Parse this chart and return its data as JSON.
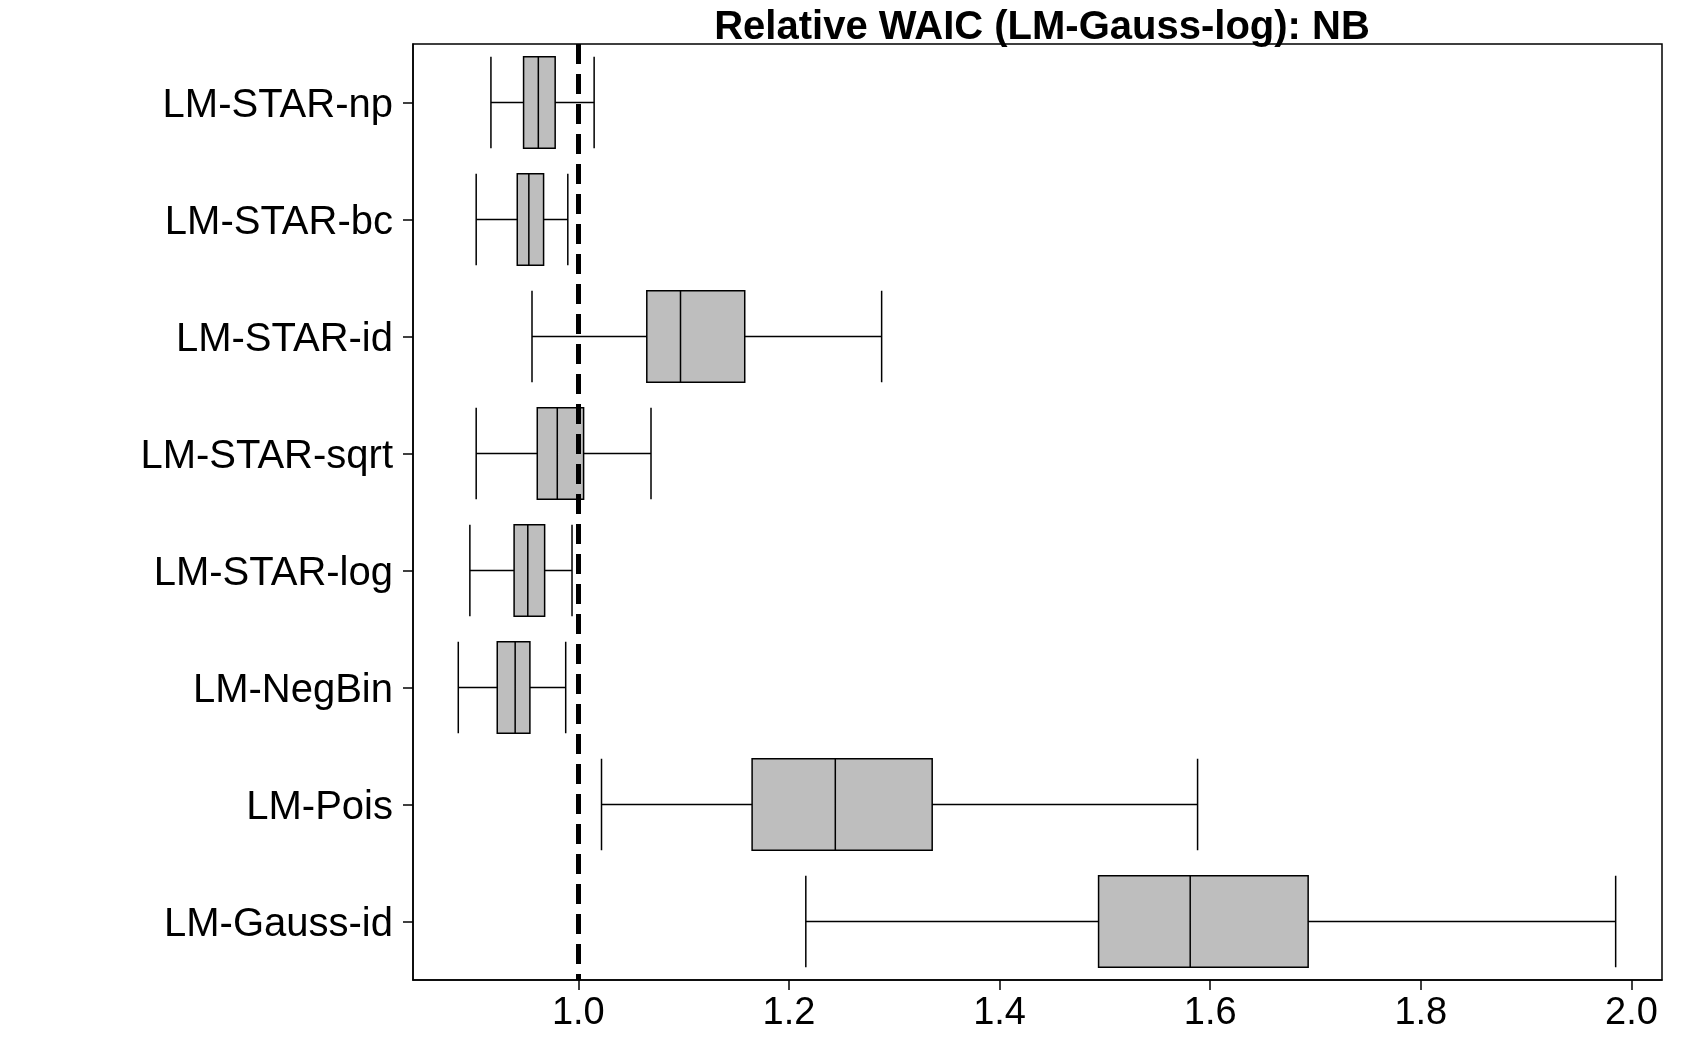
{
  "chart_data": {
    "type": "box",
    "orientation": "horizontal",
    "title": "Relative WAIC (LM-Gauss-log): NB",
    "categories": [
      "LM-STAR-np",
      "LM-STAR-bc",
      "LM-STAR-id",
      "LM-STAR-sqrt",
      "LM-STAR-log",
      "LM-NegBin",
      "LM-Pois",
      "LM-Gauss-id"
    ],
    "boxes": [
      {
        "low": 0.917,
        "q1": 0.948,
        "median": 0.962,
        "q3": 0.978,
        "high": 1.015
      },
      {
        "low": 0.903,
        "q1": 0.942,
        "median": 0.953,
        "q3": 0.967,
        "high": 0.99
      },
      {
        "low": 0.956,
        "q1": 1.065,
        "median": 1.097,
        "q3": 1.158,
        "high": 1.288
      },
      {
        "low": 0.903,
        "q1": 0.961,
        "median": 0.98,
        "q3": 1.005,
        "high": 1.069
      },
      {
        "low": 0.897,
        "q1": 0.939,
        "median": 0.952,
        "q3": 0.968,
        "high": 0.994
      },
      {
        "low": 0.886,
        "q1": 0.923,
        "median": 0.94,
        "q3": 0.954,
        "high": 0.988
      },
      {
        "low": 1.022,
        "q1": 1.165,
        "median": 1.244,
        "q3": 1.336,
        "high": 1.588
      },
      {
        "low": 1.216,
        "q1": 1.494,
        "median": 1.581,
        "q3": 1.693,
        "high": 1.985
      }
    ],
    "color": "#bebebe",
    "xlim": [
      0.843,
      2.029
    ],
    "xticks": [
      {
        "value": 1,
        "label": "1.0"
      },
      {
        "value": 1.2,
        "label": "1.2"
      },
      {
        "value": 1.4,
        "label": "1.4"
      },
      {
        "value": 1.6,
        "label": "1.6"
      },
      {
        "value": 1.8,
        "label": "1.8"
      },
      {
        "value": 2,
        "label": "2.0"
      }
    ],
    "ref_lines": [
      {
        "axis": "x",
        "value": 1,
        "label": null,
        "color": "#000000",
        "line_style": "dashed"
      }
    ],
    "grid": false
  }
}
